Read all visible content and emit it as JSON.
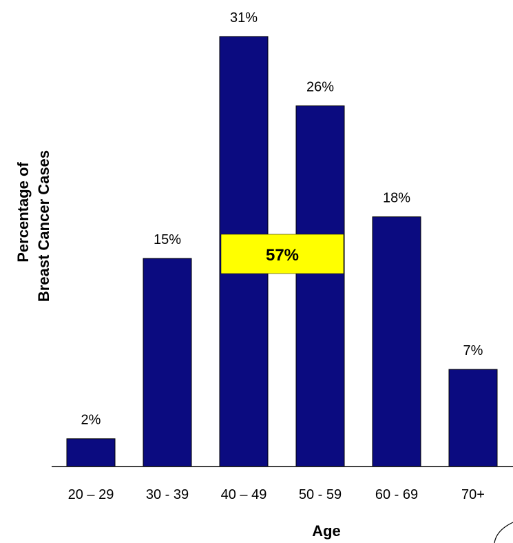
{
  "chart_data": {
    "type": "bar",
    "categories": [
      "20 – 29",
      "30 - 39",
      "40 – 49",
      "50 - 59",
      "60 - 69",
      "70+"
    ],
    "values": [
      2,
      15,
      31,
      26,
      18,
      7
    ],
    "data_labels": [
      "2%",
      "15%",
      "31%",
      "26%",
      "18%",
      "7%"
    ],
    "xlabel": "Age",
    "ylabel_lines": [
      "Percentage of",
      "Breast Cancer Cases"
    ],
    "ylim": [
      0,
      31
    ],
    "grid": false,
    "bar_color": "#0b0b80",
    "callout": {
      "text": "57%",
      "color": "#ffff00",
      "spans_categories": [
        "40 – 49",
        "50 - 59"
      ]
    }
  }
}
